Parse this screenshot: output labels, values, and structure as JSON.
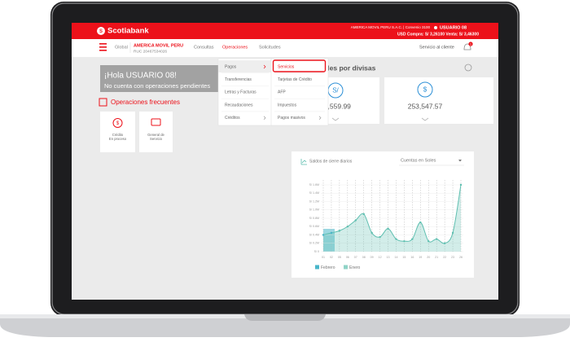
{
  "header": {
    "brand": "Scotiabank",
    "company": "AMERICA MOVIL PERU S.A.C. | Convenio 3100",
    "user": "USUARIO 08",
    "rates": "USD Compra: S/ 3,26100 Venta: S/ 3,46300"
  },
  "nav": {
    "global": "Global",
    "company": "AMERICA MOVIL PERU",
    "ruc": "RUC 20467534026",
    "menu": [
      "Consultas",
      "Operaciones",
      "Solicitudes"
    ],
    "service": "Servicio al cliente",
    "notifications": "1"
  },
  "dropdown": {
    "level1": [
      "Pagos",
      "Transferencias",
      "Letras y Facturas",
      "Recaudaciones",
      "Créditos"
    ],
    "level2": [
      "Servicios",
      "Tarjetas de Crédito",
      "AFP",
      "Impuestos",
      "Pagos masivos"
    ]
  },
  "welcome": {
    "title": "¡Hola USUARIO 08!",
    "subtitle": "No cuenta con operaciones pendientes"
  },
  "frequent": {
    "title": "Operaciones frecuentes",
    "items": [
      [
        "Crédito",
        "En proceso"
      ],
      [
        "General de",
        "Servicio"
      ]
    ]
  },
  "totals": {
    "title": "Totales por divisas",
    "cards": [
      {
        "symbol": "S/",
        "amount": "10,559.99"
      },
      {
        "symbol": "$",
        "amount": "253,547.57"
      }
    ]
  },
  "chart_data": {
    "type": "line",
    "title": "Saldos de cierre diarios",
    "selector": "Cuentas en Soles",
    "categories": [
      "01",
      "02",
      "05",
      "06",
      "07",
      "08",
      "09",
      "12",
      "13",
      "14",
      "15",
      "16",
      "19",
      "20",
      "21",
      "22",
      "23",
      "26"
    ],
    "values": [
      0.4,
      0.45,
      0.5,
      0.6,
      0.75,
      0.9,
      0.45,
      0.35,
      0.55,
      0.3,
      0.25,
      0.3,
      0.7,
      0.25,
      0.3,
      0.2,
      0.45,
      1.6
    ],
    "color": "#5fbfb0",
    "ylim": [
      0,
      1.6
    ],
    "yticks": [
      {
        "value": 0,
        "label": "S/ 0"
      },
      {
        "value": 0.2,
        "label": "S/ 0.2M"
      },
      {
        "value": 0.4,
        "label": "S/ 0.4M"
      },
      {
        "value": 0.6,
        "label": "S/ 0.6M"
      },
      {
        "value": 0.8,
        "label": "S/ 0.8M"
      },
      {
        "value": 1.0,
        "label": "S/ 1.0M"
      },
      {
        "value": 1.2,
        "label": "S/ 1.2M"
      },
      {
        "value": 1.4,
        "label": "S/ 1.4M"
      },
      {
        "value": 1.6,
        "label": "S/ 1.6M"
      }
    ],
    "legend": [
      {
        "name": "Febrero",
        "color": "#49b6c9"
      },
      {
        "name": "Enero",
        "color": "#8fd3c7"
      }
    ]
  }
}
